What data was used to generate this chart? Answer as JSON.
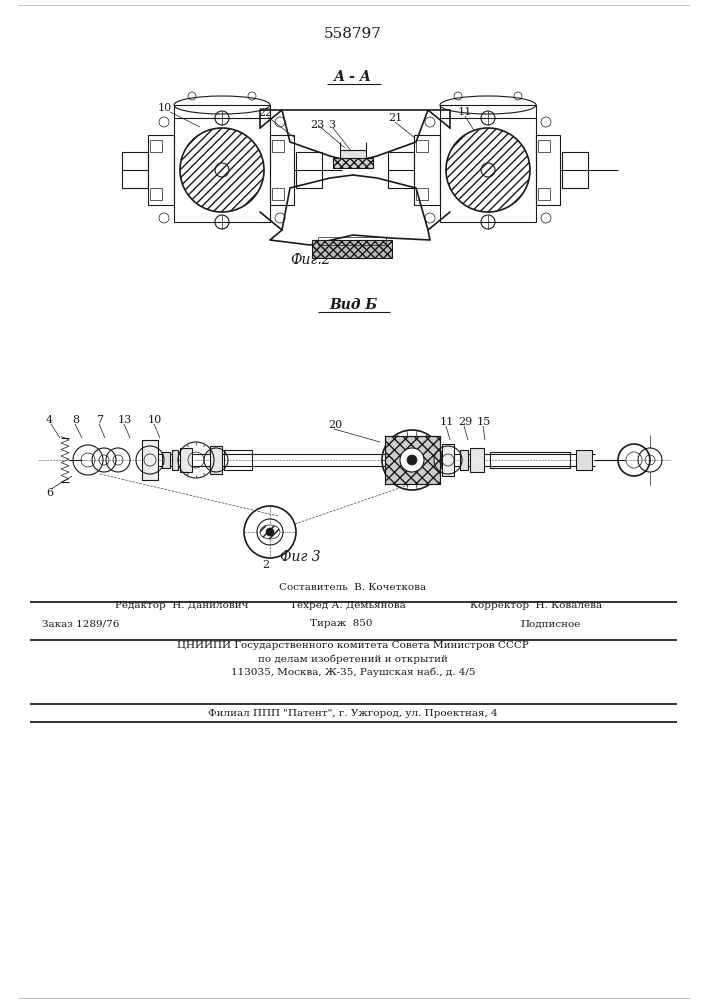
{
  "patent_number": "558797",
  "background_color": "#ffffff",
  "fig2_label": "А - А",
  "fig2_caption": "Фиг.2",
  "fig3_label": "Вид Б",
  "fig3_caption": "Фиг 3",
  "footer_line0": "Составитель  В. Кочеткова",
  "footer_line1a": "Редактор  Н. Данилович",
  "footer_line1b": "Техред А. Демьянова",
  "footer_line1c": "Корректор  Н. Ковалева",
  "footer_zakaz": "Заказ 1289/76",
  "footer_tirazh": "Тираж  850",
  "footer_podp": "Подписное",
  "footer_org": "ЦНИИПИ Государственного комитета Совета Министров СССР",
  "footer_dela": "по делам изобретений и открытий",
  "footer_addr": "113035, Москва, Ж-35, Раушская наб., д. 4/5",
  "footer_filial": "Филиал ППП \"Патент\", г. Ужгород, ул. Проектная, 4",
  "line_color": "#1a1a1a"
}
